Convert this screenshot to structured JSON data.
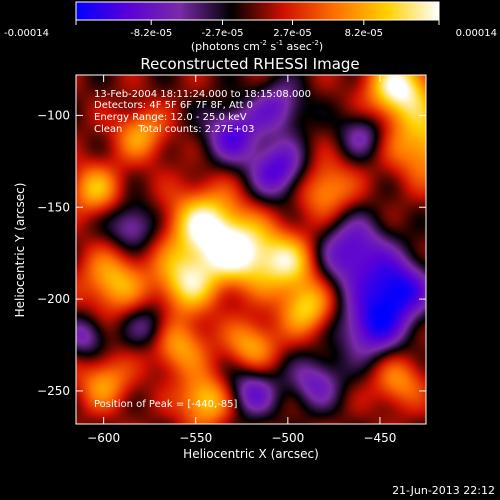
{
  "colorbar": {
    "tick_labels": [
      "-0.00014",
      "-8.2e-05",
      "-2.7e-05",
      "2.7e-05",
      "8.2e-05",
      "0.00014"
    ],
    "tick_values": [
      -0.00014,
      -8.2e-05,
      -2.7e-05,
      2.7e-05,
      8.2e-05,
      0.00014
    ],
    "range": [
      -0.00014,
      0.00014
    ],
    "unit_base": "(photons cm",
    "unit_sup1": "-2",
    "unit_mid": " s",
    "unit_sup2": "-1",
    "unit_mid2": " asec",
    "unit_sup3": "-2",
    "unit_end": ")",
    "colors": [
      "#0000ff",
      "#5a00d8",
      "#7a2aa8",
      "#000000",
      "#d01000",
      "#ff7000",
      "#ffd000",
      "#ffffff"
    ]
  },
  "chart_data": {
    "type": "heatmap",
    "title": "Reconstructed RHESSI Image",
    "xlabel": "Heliocentric X (arcsec)",
    "ylabel": "Heliocentric Y (arcsec)",
    "xlim": [
      -615,
      -425
    ],
    "ylim": [
      -268,
      -78
    ],
    "x_ticks": [
      -600,
      -550,
      -500,
      -450
    ],
    "x_tick_labels": [
      "−600",
      "−550",
      "−500",
      "−450"
    ],
    "y_ticks": [
      -100,
      -150,
      -200,
      -250
    ],
    "y_tick_labels": [
      "−100",
      "−150",
      "−200",
      "−250"
    ],
    "annotations": [
      "13-Feb-2004 18:11:24.000 to 18:15:08.000",
      "Detectors: 4F 5F 6F 7F 8F, Att 0",
      "Energy Range: 12.0 - 25.0 keV",
      "Clean     Total counts: 2.27E+03"
    ],
    "peak_label": "Position of Peak = [-440,-85]",
    "peak": [
      -440,
      -85
    ],
    "grid": false,
    "blobs": [
      {
        "x": -440,
        "y": -85,
        "a": 1.0,
        "s": 12
      },
      {
        "x": -425,
        "y": -115,
        "a": 0.7,
        "s": 14
      },
      {
        "x": -480,
        "y": -140,
        "a": 0.6,
        "s": 11
      },
      {
        "x": -545,
        "y": -160,
        "a": 0.95,
        "s": 14
      },
      {
        "x": -525,
        "y": -175,
        "a": 0.85,
        "s": 13
      },
      {
        "x": -555,
        "y": -190,
        "a": 0.8,
        "s": 12
      },
      {
        "x": -500,
        "y": -180,
        "a": 0.75,
        "s": 12
      },
      {
        "x": -490,
        "y": -205,
        "a": 0.7,
        "s": 10
      },
      {
        "x": -595,
        "y": -190,
        "a": 0.65,
        "s": 12
      },
      {
        "x": -605,
        "y": -140,
        "a": 0.6,
        "s": 10
      },
      {
        "x": -580,
        "y": -110,
        "a": 0.55,
        "s": 10
      },
      {
        "x": -560,
        "y": -225,
        "a": 0.6,
        "s": 11
      },
      {
        "x": -520,
        "y": -225,
        "a": 0.6,
        "s": 10
      },
      {
        "x": -545,
        "y": -255,
        "a": 0.75,
        "s": 10
      },
      {
        "x": -600,
        "y": -245,
        "a": 0.55,
        "s": 10
      },
      {
        "x": -440,
        "y": -245,
        "a": 0.5,
        "s": 10
      },
      {
        "x": -465,
        "y": -175,
        "a": -0.75,
        "s": 14
      },
      {
        "x": -440,
        "y": -195,
        "a": -0.9,
        "s": 12
      },
      {
        "x": -455,
        "y": -215,
        "a": -0.8,
        "s": 12
      },
      {
        "x": -530,
        "y": -110,
        "a": -0.7,
        "s": 11
      },
      {
        "x": -505,
        "y": -130,
        "a": -0.75,
        "s": 11
      },
      {
        "x": -585,
        "y": -160,
        "a": -0.55,
        "s": 9
      },
      {
        "x": -520,
        "y": -250,
        "a": -0.6,
        "s": 10
      },
      {
        "x": -485,
        "y": -245,
        "a": -0.55,
        "s": 10
      },
      {
        "x": -575,
        "y": -215,
        "a": -0.45,
        "s": 9
      },
      {
        "x": -610,
        "y": -220,
        "a": -0.5,
        "s": 8
      },
      {
        "x": -505,
        "y": -95,
        "a": -0.55,
        "s": 10
      },
      {
        "x": -460,
        "y": -110,
        "a": -0.45,
        "s": 9
      }
    ]
  },
  "footer": {
    "timestamp": "21-Jun-2013 22:12"
  }
}
